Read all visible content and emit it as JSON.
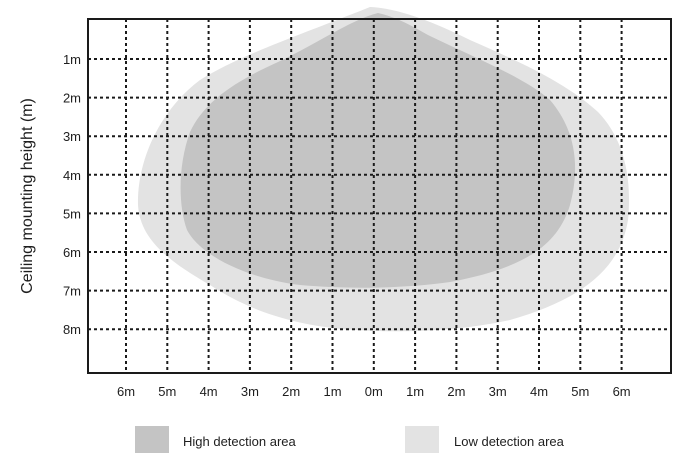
{
  "diagram": {
    "y_axis_title": "Ceiling mounting height (m)",
    "y_ticks": [
      "1m",
      "2m",
      "3m",
      "4m",
      "5m",
      "6m",
      "7m",
      "8m"
    ],
    "x_ticks": [
      "6m",
      "5m",
      "4m",
      "3m",
      "2m",
      "1m",
      "0m",
      "1m",
      "2m",
      "3m",
      "4m",
      "5m",
      "6m"
    ],
    "colors": {
      "high": "#c4c4c4",
      "low": "#e3e3e3",
      "grid": "#1a1a1a",
      "border": "#1a1a1a"
    }
  },
  "legend": {
    "items": [
      {
        "key": "high",
        "label": "High detection area"
      },
      {
        "key": "low",
        "label": "Low detection area"
      }
    ]
  }
}
